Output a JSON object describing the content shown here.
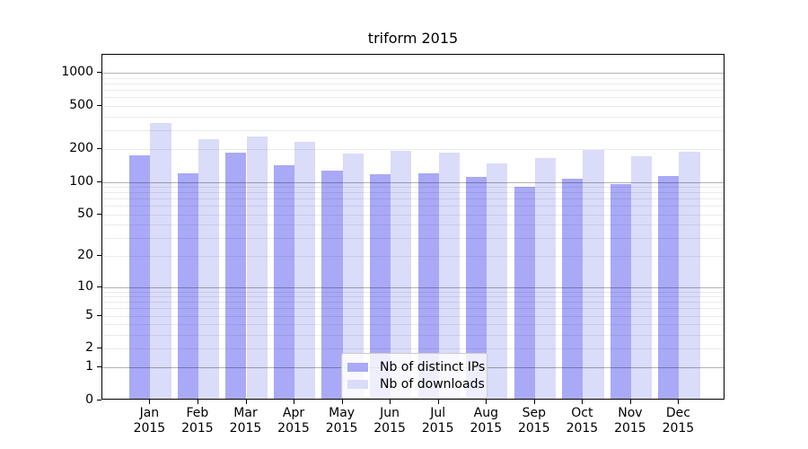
{
  "title": "triform 2015",
  "chart_data": {
    "type": "bar",
    "title": "triform 2015",
    "categories": [
      "Jan 2015",
      "Feb 2015",
      "Mar 2015",
      "Apr 2015",
      "May 2015",
      "Jun 2015",
      "Jul 2015",
      "Aug 2015",
      "Sep 2015",
      "Oct 2015",
      "Nov 2015",
      "Dec 2015"
    ],
    "series": [
      {
        "name": "Nb of distinct IPs",
        "color": "#a9a9f7",
        "values": [
          170,
          115,
          178,
          137,
          122,
          113,
          116,
          106,
          86,
          103,
          91,
          110
        ]
      },
      {
        "name": "Nb of downloads",
        "color": "#dbdbfa",
        "values": [
          335,
          240,
          253,
          226,
          175,
          186,
          178,
          143,
          160,
          190,
          165,
          182
        ]
      }
    ],
    "yscale": "log1p",
    "y_ticks": [
      0,
      1,
      2,
      5,
      10,
      20,
      50,
      100,
      200,
      500,
      1000
    ],
    "y_major_gridlines": [
      1,
      10,
      100,
      1000
    ],
    "ylim": [
      0,
      1470
    ],
    "xlabel": "",
    "ylabel": "",
    "grid": "both",
    "legend_position": "lower center",
    "colors": {
      "major_grid": "#b3b3b3",
      "minor_grid": "#ebebeb",
      "spine": "#000000",
      "background": "#ffffff"
    }
  }
}
